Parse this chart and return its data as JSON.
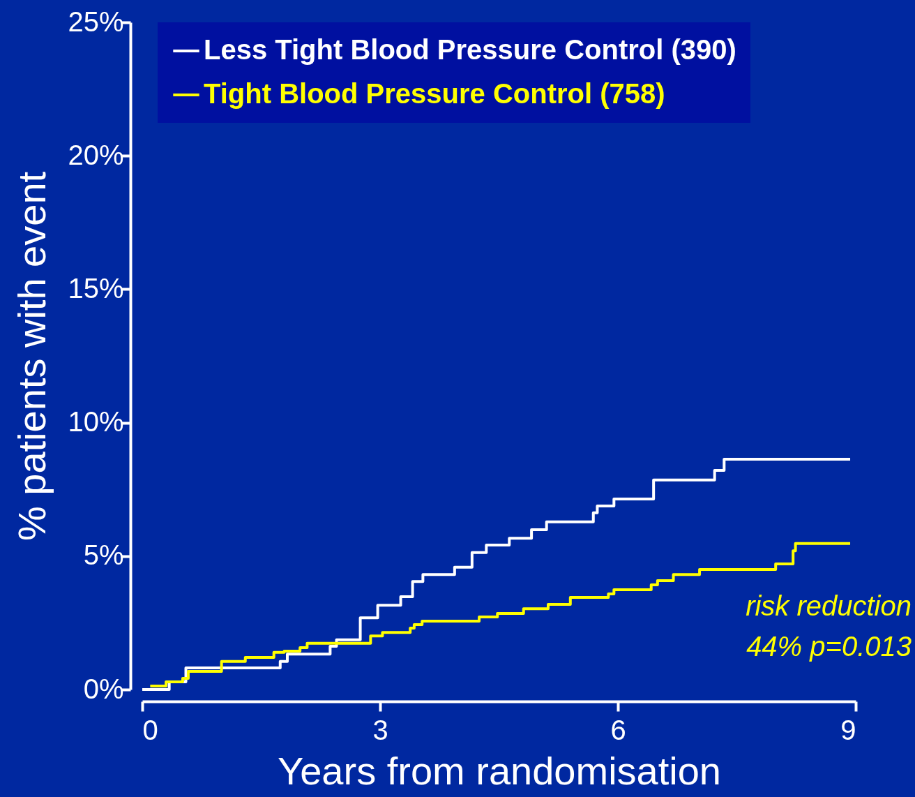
{
  "chart_data": {
    "type": "step",
    "xlabel": "Years from randomisation",
    "ylabel": "% patients with event",
    "xlim": [
      0,
      9
    ],
    "xticks": [
      0,
      3,
      6,
      9
    ],
    "ylim": [
      0,
      25
    ],
    "yticks": [
      {
        "value": 0,
        "label": "0%"
      },
      {
        "value": 5,
        "label": "5%"
      },
      {
        "value": 10,
        "label": "10%"
      },
      {
        "value": 15,
        "label": "15%"
      },
      {
        "value": 20,
        "label": "20%"
      },
      {
        "value": 25,
        "label": "25%"
      }
    ],
    "legend": "top left",
    "grid": false,
    "annotations": [
      "risk reduction",
      "44% p=0.013"
    ],
    "series": [
      {
        "name": "Less Tight Blood Pressure Control (390)",
        "color": "#ffffff",
        "x": [
          0,
          0.34,
          0.55,
          1.74,
          1.83,
          2.37,
          2.45,
          2.75,
          2.97,
          3.26,
          3.41,
          3.54,
          3.94,
          4.16,
          4.34,
          4.63,
          4.91,
          5.1,
          5.69,
          5.74,
          5.95,
          6.45,
          7.22,
          7.34,
          8.93
        ],
        "values": [
          0,
          0.29,
          0.81,
          1.05,
          1.33,
          1.62,
          1.86,
          2.69,
          3.16,
          3.48,
          4.05,
          4.31,
          4.58,
          5.13,
          5.41,
          5.67,
          5.99,
          6.28,
          6.62,
          6.88,
          7.14,
          7.85,
          8.21,
          8.63,
          8.63
        ]
      },
      {
        "name": "Tight Blood Pressure Control (758)",
        "color": "#ffff00",
        "x": [
          0.1,
          0.3,
          0.51,
          0.58,
          1,
          1.3,
          1.66,
          1.79,
          1.99,
          2.08,
          2.88,
          3.03,
          3.38,
          3.43,
          3.53,
          4.25,
          4.48,
          4.81,
          5.12,
          5.4,
          5.88,
          5.95,
          6.42,
          6.5,
          6.7,
          7.03,
          7.99,
          8.21,
          8.24,
          8.93
        ],
        "values": [
          0.13,
          0.29,
          0.42,
          0.68,
          1.05,
          1.2,
          1.39,
          1.44,
          1.57,
          1.73,
          2.01,
          2.14,
          2.3,
          2.43,
          2.56,
          2.72,
          2.85,
          3.03,
          3.19,
          3.45,
          3.58,
          3.74,
          3.92,
          4.08,
          4.31,
          4.5,
          4.71,
          5.2,
          5.47,
          5.47
        ]
      }
    ]
  }
}
